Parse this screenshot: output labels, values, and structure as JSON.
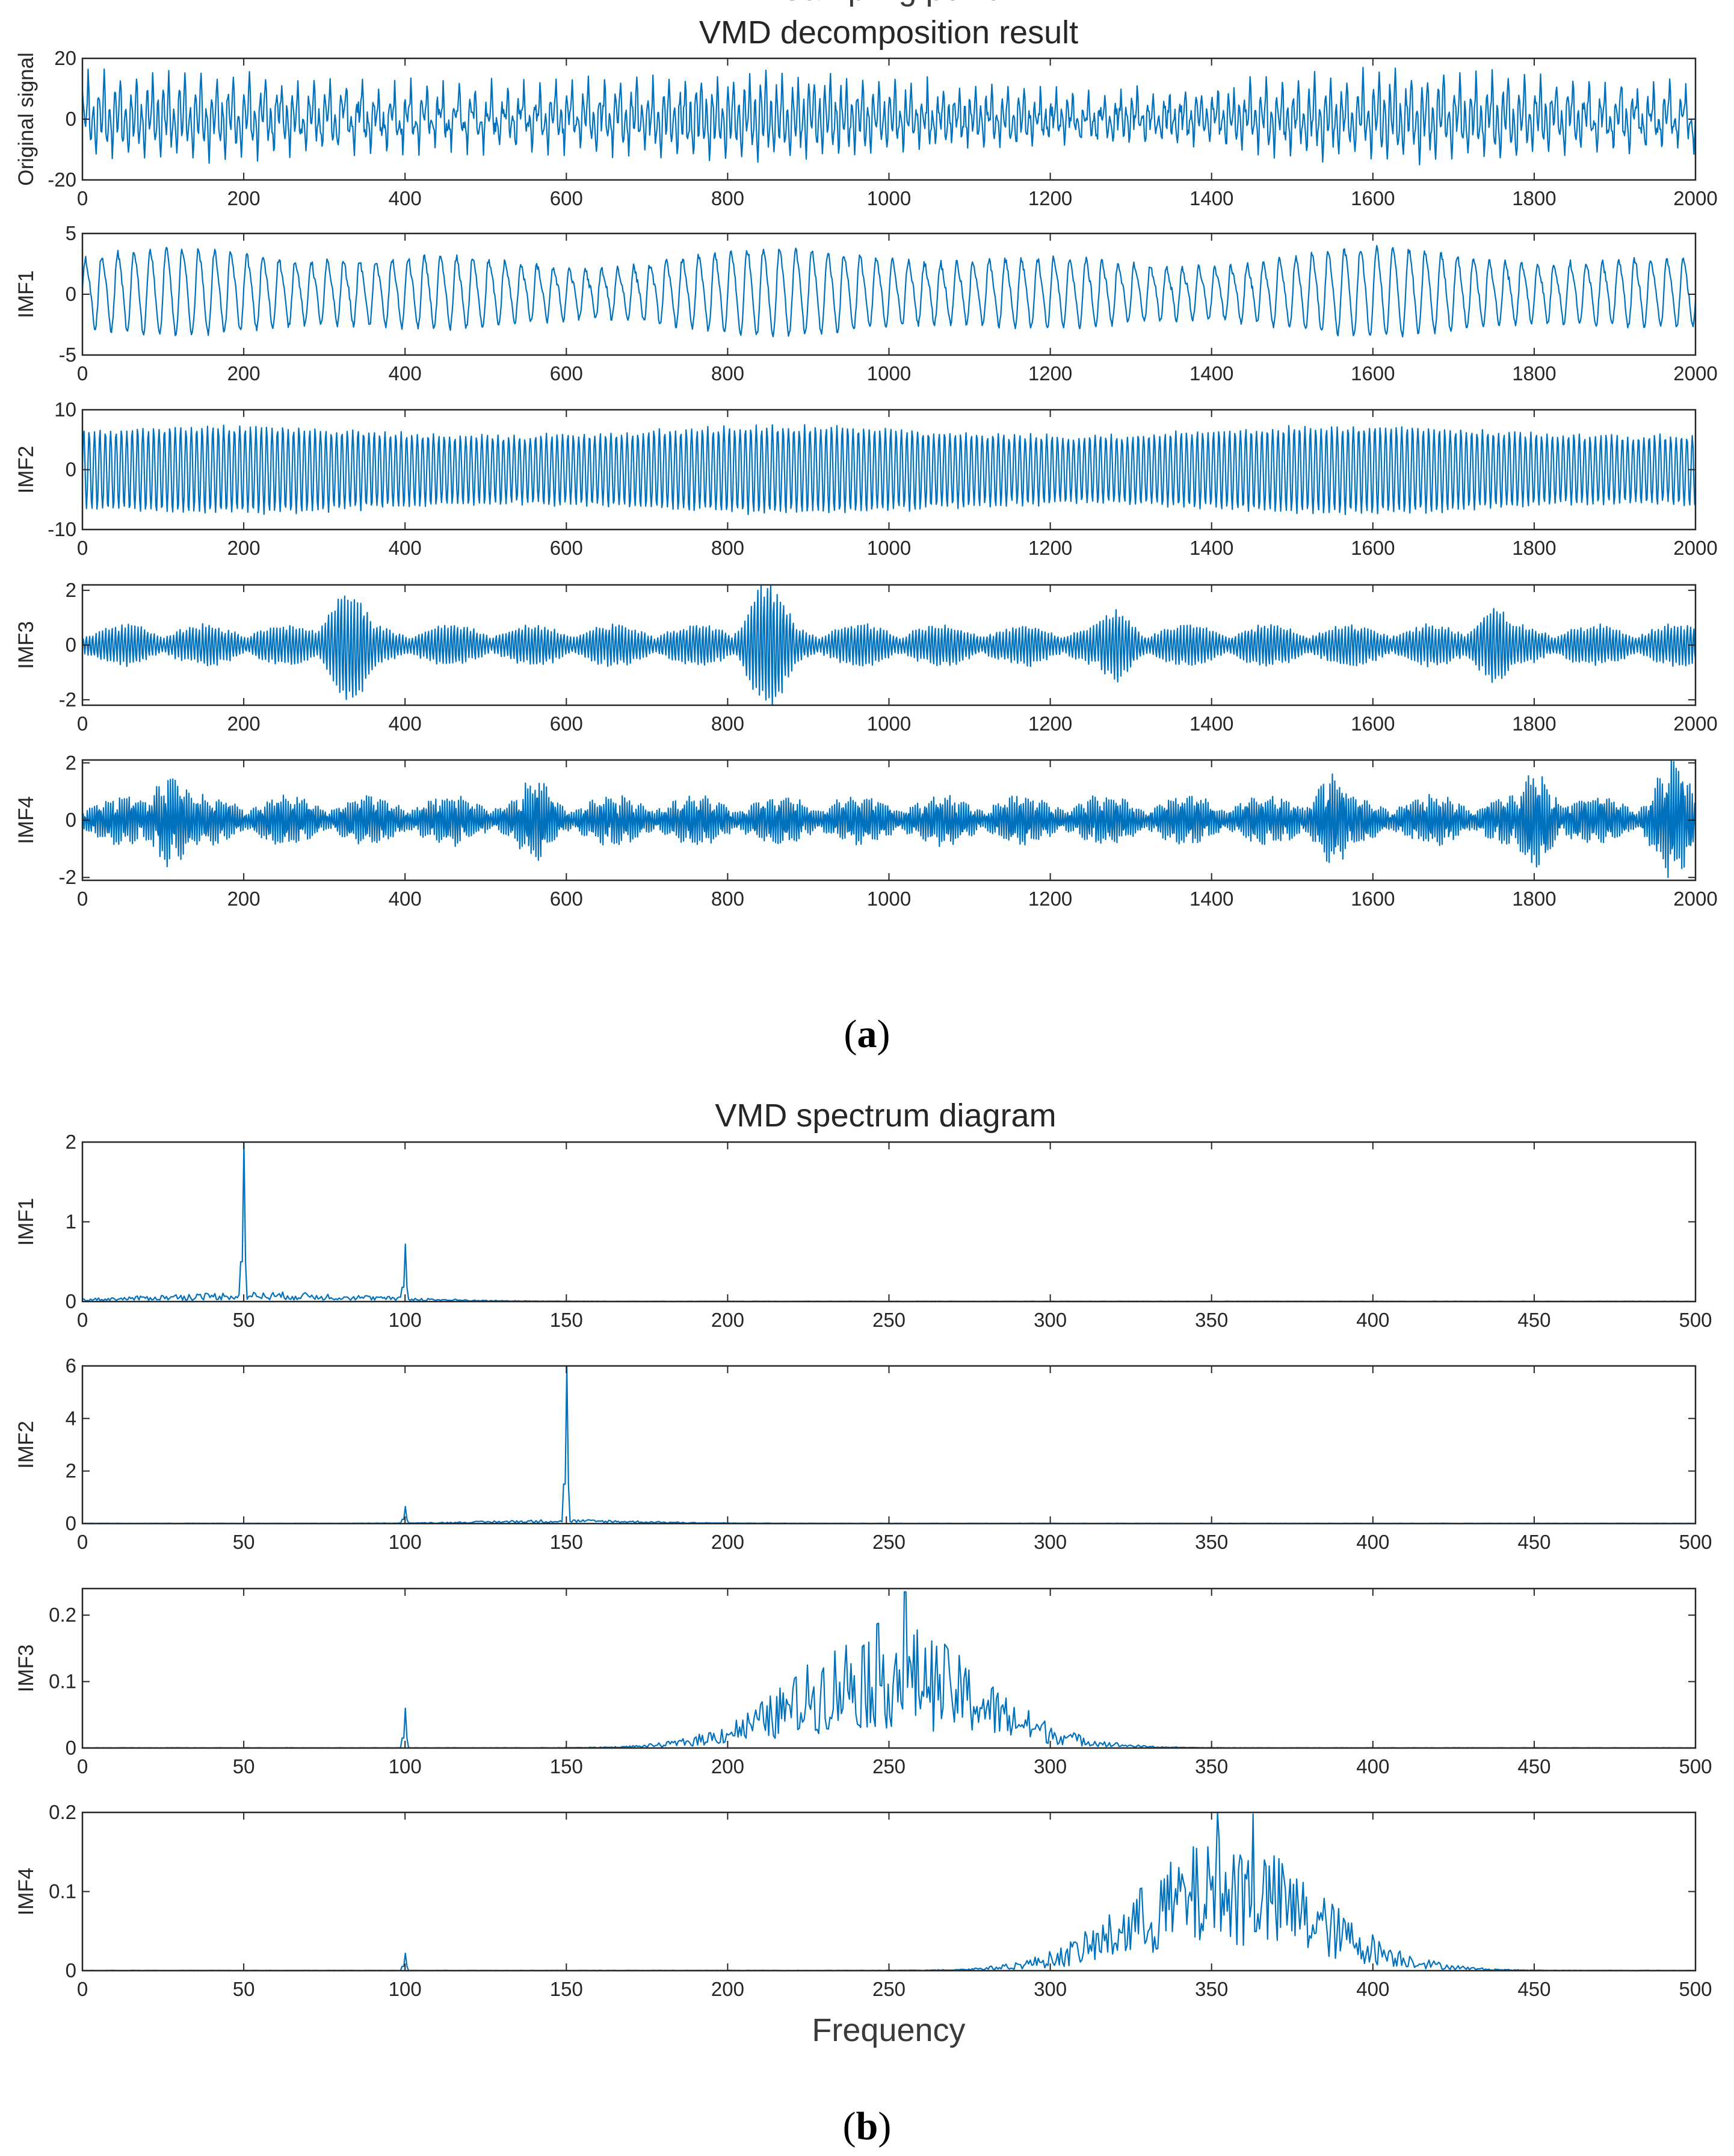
{
  "colors": {
    "series": "#0072BD",
    "axis": "#262626"
  },
  "panel_a": {
    "caption_letter": "a",
    "caption_open": "(",
    "caption_close": ")"
  },
  "panel_b": {
    "caption_letter": "b",
    "caption_open": "(",
    "caption_close": ")"
  },
  "chart_data": [
    {
      "type": "line",
      "group": "a",
      "group_title": "VMD decomposition result",
      "name": "original",
      "ylabel": "Original signal",
      "xlabel": "",
      "xlim": [
        0,
        2000
      ],
      "ylim": [
        -20,
        20
      ],
      "xticks": [
        0,
        200,
        400,
        600,
        800,
        1000,
        1200,
        1400,
        1600,
        1800,
        2000
      ],
      "yticks": [
        -20,
        0,
        20
      ],
      "signal": {
        "kind": "mixture",
        "n": 2000,
        "components": [
          {
            "freq": 0.05,
            "amp": 3.0
          },
          {
            "freq": 0.15,
            "amp": 5.5
          },
          {
            "freq": 0.25,
            "amp": 1.2
          },
          {
            "freq": 0.35,
            "amp": 1.0
          }
        ],
        "noise": 1.5,
        "peak": 17,
        "min": -15
      }
    },
    {
      "type": "line",
      "group": "a",
      "name": "imf1",
      "ylabel": "IMF1",
      "xlabel": "",
      "xlim": [
        0,
        2000
      ],
      "ylim": [
        -5,
        5
      ],
      "xticks": [
        0,
        200,
        400,
        600,
        800,
        1000,
        1200,
        1400,
        1600,
        1800,
        2000
      ],
      "yticks": [
        -5,
        0,
        5
      ],
      "signal": {
        "kind": "periodic",
        "n": 2000,
        "freq": 0.05,
        "amp": 2.6,
        "harmonic": 0.6,
        "amp_variation": 0.35,
        "peak": 4,
        "min": -3.5
      }
    },
    {
      "type": "line",
      "group": "a",
      "name": "imf2",
      "ylabel": "IMF2",
      "xlabel": "",
      "xlim": [
        0,
        2000
      ],
      "ylim": [
        -10,
        10
      ],
      "xticks": [
        0,
        200,
        400,
        600,
        800,
        1000,
        1200,
        1400,
        1600,
        1800,
        2000
      ],
      "yticks": [
        -10,
        0,
        10
      ],
      "signal": {
        "kind": "carrier",
        "n": 2000,
        "freq": 0.15,
        "amp": 6.0,
        "amp_variation": 0.12,
        "peak": 7.5,
        "min": -7.5
      }
    },
    {
      "type": "line",
      "group": "a",
      "name": "imf3",
      "ylabel": "IMF3",
      "xlabel": "",
      "xlim": [
        0,
        2000
      ],
      "ylim": [
        -2.2,
        2.2
      ],
      "xticks": [
        0,
        200,
        400,
        600,
        800,
        1000,
        1200,
        1400,
        1600,
        1800,
        2000
      ],
      "yticks": [
        -2,
        0,
        2
      ],
      "signal": {
        "kind": "bursts",
        "n": 2000,
        "freq": 0.25,
        "base_amp": 0.7,
        "burst_centers": [
          330,
          850,
          1280,
          1750
        ],
        "burst_amps": [
          2.0,
          2.2,
          1.2,
          1.3
        ],
        "peak": 2.2,
        "min": -2.2
      }
    },
    {
      "type": "line",
      "group": "a",
      "name": "imf4",
      "ylabel": "IMF4",
      "xlabel": "Sampling point",
      "xlim": [
        0,
        2000
      ],
      "ylim": [
        -2.1,
        2.1
      ],
      "xticks": [
        0,
        200,
        400,
        600,
        800,
        1000,
        1200,
        1400,
        1600,
        1800,
        2000
      ],
      "yticks": [
        -2,
        0,
        2
      ],
      "signal": {
        "kind": "bursts",
        "n": 2000,
        "freq": 0.35,
        "base_amp": 0.9,
        "burst_centers": [
          110,
          560,
          1550,
          1800,
          1970
        ],
        "burst_amps": [
          1.7,
          1.5,
          1.6,
          1.7,
          2.1
        ],
        "peak": 2.1,
        "min": -2.0
      }
    },
    {
      "type": "line",
      "group": "b",
      "group_title": "VMD spectrum diagram",
      "name": "spec1",
      "ylabel": "IMF1",
      "xlabel": "",
      "xlim": [
        0,
        500
      ],
      "ylim": [
        0,
        2
      ],
      "xticks": [
        0,
        50,
        100,
        150,
        200,
        250,
        300,
        350,
        400,
        450,
        500
      ],
      "yticks": [
        0,
        1,
        2
      ],
      "signal": {
        "kind": "spectrum",
        "n": 1000,
        "peaks": [
          [
            50,
            2.0
          ],
          [
            100,
            0.72
          ]
        ],
        "band": {
          "center": 55,
          "width": 35,
          "amp": 0.12
        }
      }
    },
    {
      "type": "line",
      "group": "b",
      "name": "spec2",
      "ylabel": "IMF2",
      "xlabel": "",
      "xlim": [
        0,
        500
      ],
      "ylim": [
        0,
        6
      ],
      "xticks": [
        0,
        50,
        100,
        150,
        200,
        250,
        300,
        350,
        400,
        450,
        500
      ],
      "yticks": [
        0,
        2,
        4,
        6
      ],
      "signal": {
        "kind": "spectrum",
        "n": 1000,
        "peaks": [
          [
            150,
            6.0
          ],
          [
            100,
            0.65
          ]
        ],
        "band": {
          "center": 150,
          "width": 25,
          "amp": 0.15
        }
      }
    },
    {
      "type": "line",
      "group": "b",
      "name": "spec3",
      "ylabel": "IMF3",
      "xlabel": "",
      "xlim": [
        0,
        500
      ],
      "ylim": [
        0,
        0.24
      ],
      "xticks": [
        0,
        50,
        100,
        150,
        200,
        250,
        300,
        350,
        400,
        450,
        500
      ],
      "yticks": [
        0,
        0.1,
        0.2
      ],
      "signal": {
        "kind": "spectrum",
        "n": 1000,
        "peaks": [
          [
            100,
            0.06
          ],
          [
            255,
            0.235
          ]
        ],
        "band": {
          "center": 250,
          "width": 28,
          "amp": 0.19
        }
      }
    },
    {
      "type": "line",
      "group": "b",
      "name": "spec4",
      "ylabel": "IMF4",
      "xlabel": "Frequency",
      "xlim": [
        0,
        500
      ],
      "ylim": [
        0,
        0.2
      ],
      "xticks": [
        0,
        50,
        100,
        150,
        200,
        250,
        300,
        350,
        400,
        450,
        500
      ],
      "yticks": [
        0,
        0.1,
        0.2
      ],
      "signal": {
        "kind": "spectrum",
        "n": 1000,
        "peaks": [
          [
            100,
            0.022
          ],
          [
            352,
            0.2
          ],
          [
            363,
            0.198
          ]
        ],
        "band": {
          "center": 355,
          "width": 28,
          "amp": 0.17
        }
      }
    }
  ]
}
